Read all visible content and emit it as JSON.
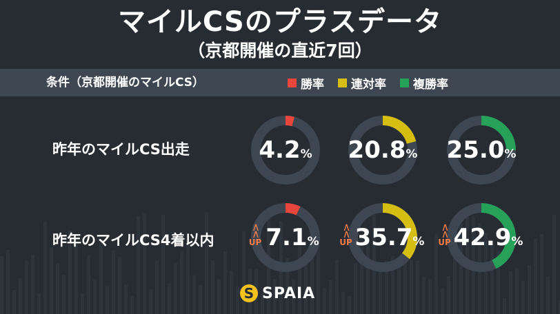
{
  "header": {
    "title": "マイルCSのプラスデータ",
    "subtitle": "（京都開催の直近7回）"
  },
  "band": {
    "condition_label": "条件（京都開催のマイルCS）",
    "legend": [
      {
        "label": "勝率",
        "color": "#e8453c"
      },
      {
        "label": "連対率",
        "color": "#d6bd12"
      },
      {
        "label": "複勝率",
        "color": "#27a05a"
      }
    ]
  },
  "chart_data": {
    "type": "donut",
    "metrics": [
      "勝率",
      "連対率",
      "複勝率"
    ],
    "colors": [
      "#e8453c",
      "#d6bd12",
      "#27a05a"
    ],
    "unit": "%",
    "rows": [
      {
        "label": "昨年のマイルCS出走",
        "values": [
          4.2,
          20.8,
          25.0
        ],
        "value_labels": [
          "4.2",
          "20.8",
          "25.0"
        ],
        "up": false
      },
      {
        "label": "昨年のマイルCS4着以内",
        "values": [
          7.1,
          35.7,
          42.9
        ],
        "value_labels": [
          "7.1",
          "35.7",
          "42.9"
        ],
        "up": true
      }
    ],
    "up_label": "UP"
  },
  "footer": {
    "logo_mark": "S",
    "logo_text": "SPAIA"
  }
}
